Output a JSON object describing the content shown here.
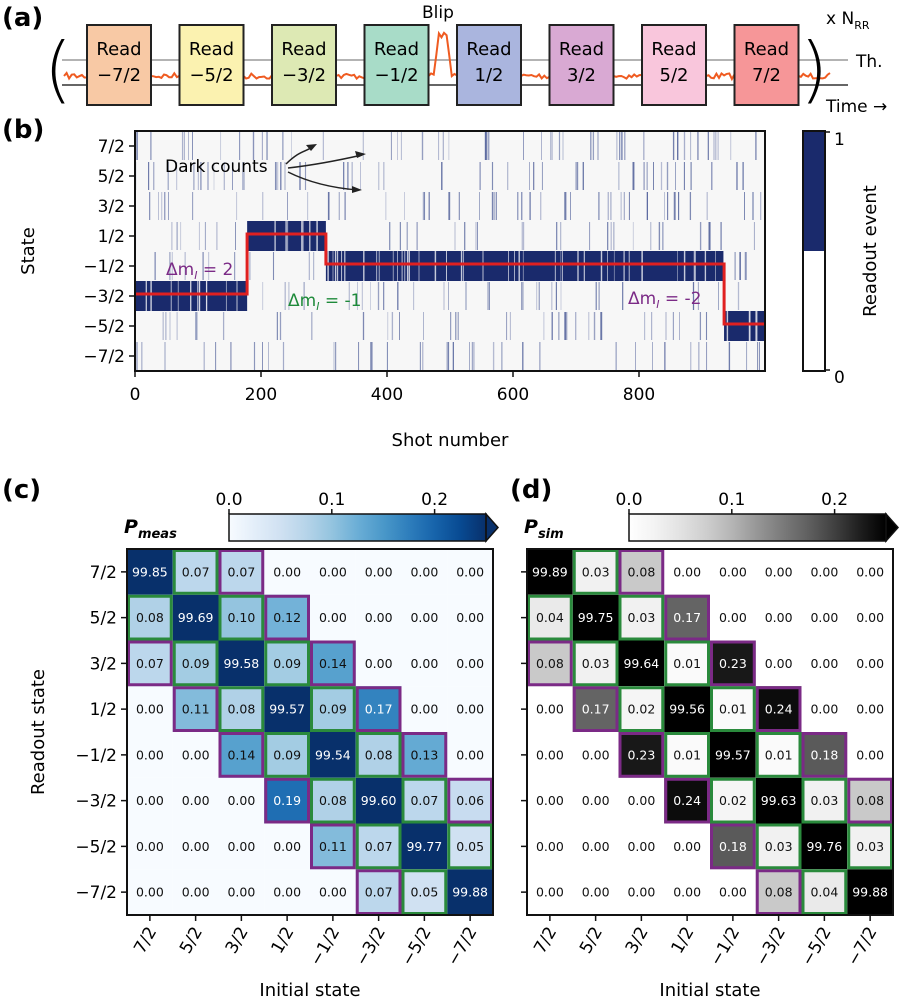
{
  "panel_labels": {
    "a": "(a)",
    "b": "(b)",
    "c": "(c)",
    "d": "(d)"
  },
  "panel_a": {
    "reads": [
      {
        "top": "Read",
        "bottom": "−7/2",
        "color": "#f8c9a5"
      },
      {
        "top": "Read",
        "bottom": "−5/2",
        "color": "#fbf2b0"
      },
      {
        "top": "Read",
        "bottom": "−3/2",
        "color": "#dde9b4"
      },
      {
        "top": "Read",
        "bottom": "−1/2",
        "color": "#a8dcc8"
      },
      {
        "top": "Read",
        "bottom": "1/2",
        "color": "#aab5de"
      },
      {
        "top": "Read",
        "bottom": "3/2",
        "color": "#d9a9d3"
      },
      {
        "top": "Read",
        "bottom": "5/2",
        "color": "#f9c6dc"
      },
      {
        "top": "Read",
        "bottom": "7/2",
        "color": "#f69698"
      }
    ],
    "blip_label": "Blip",
    "repeat_label_prefix": "x N",
    "repeat_label_sub": "RR",
    "threshold_label": "Th.",
    "time_label": "Time →",
    "trace_color": "#ef5b21"
  },
  "chart_data": [
    {
      "type": "heatmap",
      "panel": "b",
      "xlabel": "Shot number",
      "ylabel": "State",
      "x_ticks": [
        0,
        200,
        400,
        600,
        800
      ],
      "xlim": [
        0,
        1000
      ],
      "y_tick_labels": [
        "7/2",
        "5/2",
        "3/2",
        "1/2",
        "−1/2",
        "−3/2",
        "−5/2",
        "−7/2"
      ],
      "colorbar": {
        "label": "Readout event",
        "ticks": [
          0,
          1
        ],
        "color_high": "#1a2a6c",
        "color_low": "#ffffff"
      },
      "state_trace": [
        {
          "start_shot": 0,
          "end_shot": 178,
          "state": "−3/2"
        },
        {
          "start_shot": 178,
          "end_shot": 303,
          "state": "1/2"
        },
        {
          "start_shot": 303,
          "end_shot": 935,
          "state": "−1/2"
        },
        {
          "start_shot": 935,
          "end_shot": 1000,
          "state": "−5/2"
        }
      ],
      "trace_color": "#e02020",
      "annotations": [
        {
          "text": "Dark counts",
          "color": "#222222"
        },
        {
          "text": "Δm",
          "sub": "I",
          "value": " = 2",
          "color": "#7b2a86"
        },
        {
          "text": "Δm",
          "sub": "I",
          "value": " = -1",
          "color": "#1e8a3a"
        },
        {
          "text": "Δm",
          "sub": "I",
          "value": " = -2",
          "color": "#7b2a86"
        }
      ]
    },
    {
      "type": "heatmap",
      "panel": "c",
      "title_main": "P",
      "title_sub": "meas",
      "xlabel": "Initial state",
      "ylabel": "Readout state",
      "x_tick_labels": [
        "7/2",
        "5/2",
        "3/2",
        "1/2",
        "−1/2",
        "−3/2",
        "−5/2",
        "−7/2"
      ],
      "y_tick_labels": [
        "7/2",
        "5/2",
        "3/2",
        "1/2",
        "−1/2",
        "−3/2",
        "−5/2",
        "−7/2"
      ],
      "colorbar": {
        "ticks": [
          "0.0",
          "0.1",
          "0.2"
        ],
        "range": [
          0,
          0.25
        ],
        "extend": "max",
        "cmap": "Blues"
      },
      "values": [
        [
          "99.85",
          "0.07",
          "0.07",
          "0.00",
          "0.00",
          "0.00",
          "0.00",
          "0.00"
        ],
        [
          "0.08",
          "99.69",
          "0.10",
          "0.12",
          "0.00",
          "0.00",
          "0.00",
          "0.00"
        ],
        [
          "0.07",
          "0.09",
          "99.58",
          "0.09",
          "0.14",
          "0.00",
          "0.00",
          "0.00"
        ],
        [
          "0.00",
          "0.11",
          "0.08",
          "99.57",
          "0.09",
          "0.17",
          "0.00",
          "0.00"
        ],
        [
          "0.00",
          "0.00",
          "0.14",
          "0.09",
          "99.54",
          "0.08",
          "0.13",
          "0.00"
        ],
        [
          "0.00",
          "0.00",
          "0.00",
          "0.19",
          "0.08",
          "99.60",
          "0.07",
          "0.06"
        ],
        [
          "0.00",
          "0.00",
          "0.00",
          "0.00",
          "0.11",
          "0.07",
          "99.77",
          "0.05"
        ],
        [
          "0.00",
          "0.00",
          "0.00",
          "0.00",
          "0.00",
          "0.07",
          "0.05",
          "99.88"
        ]
      ],
      "outline_colors": {
        "delta1": "#2a8a3c",
        "delta2": "#7b2a86"
      }
    },
    {
      "type": "heatmap",
      "panel": "d",
      "title_main": "P",
      "title_sub": "sim",
      "xlabel": "Initial state",
      "x_tick_labels": [
        "7/2",
        "5/2",
        "3/2",
        "1/2",
        "−1/2",
        "−3/2",
        "−5/2",
        "−7/2"
      ],
      "colorbar": {
        "ticks": [
          "0.0",
          "0.1",
          "0.2"
        ],
        "range": [
          0,
          0.25
        ],
        "extend": "max",
        "cmap": "Greys"
      },
      "values": [
        [
          "99.89",
          "0.03",
          "0.08",
          "0.00",
          "0.00",
          "0.00",
          "0.00",
          "0.00"
        ],
        [
          "0.04",
          "99.75",
          "0.03",
          "0.17",
          "0.00",
          "0.00",
          "0.00",
          "0.00"
        ],
        [
          "0.08",
          "0.03",
          "99.64",
          "0.01",
          "0.23",
          "0.00",
          "0.00",
          "0.00"
        ],
        [
          "0.00",
          "0.17",
          "0.02",
          "99.56",
          "0.01",
          "0.24",
          "0.00",
          "0.00"
        ],
        [
          "0.00",
          "0.00",
          "0.23",
          "0.01",
          "99.57",
          "0.01",
          "0.18",
          "0.00"
        ],
        [
          "0.00",
          "0.00",
          "0.00",
          "0.24",
          "0.02",
          "99.63",
          "0.03",
          "0.08"
        ],
        [
          "0.00",
          "0.00",
          "0.00",
          "0.00",
          "0.18",
          "0.03",
          "99.76",
          "0.03"
        ],
        [
          "0.00",
          "0.00",
          "0.00",
          "0.00",
          "0.00",
          "0.08",
          "0.04",
          "99.88"
        ]
      ],
      "outline_colors": {
        "delta1": "#2a8a3c",
        "delta2": "#7b2a86"
      }
    }
  ]
}
